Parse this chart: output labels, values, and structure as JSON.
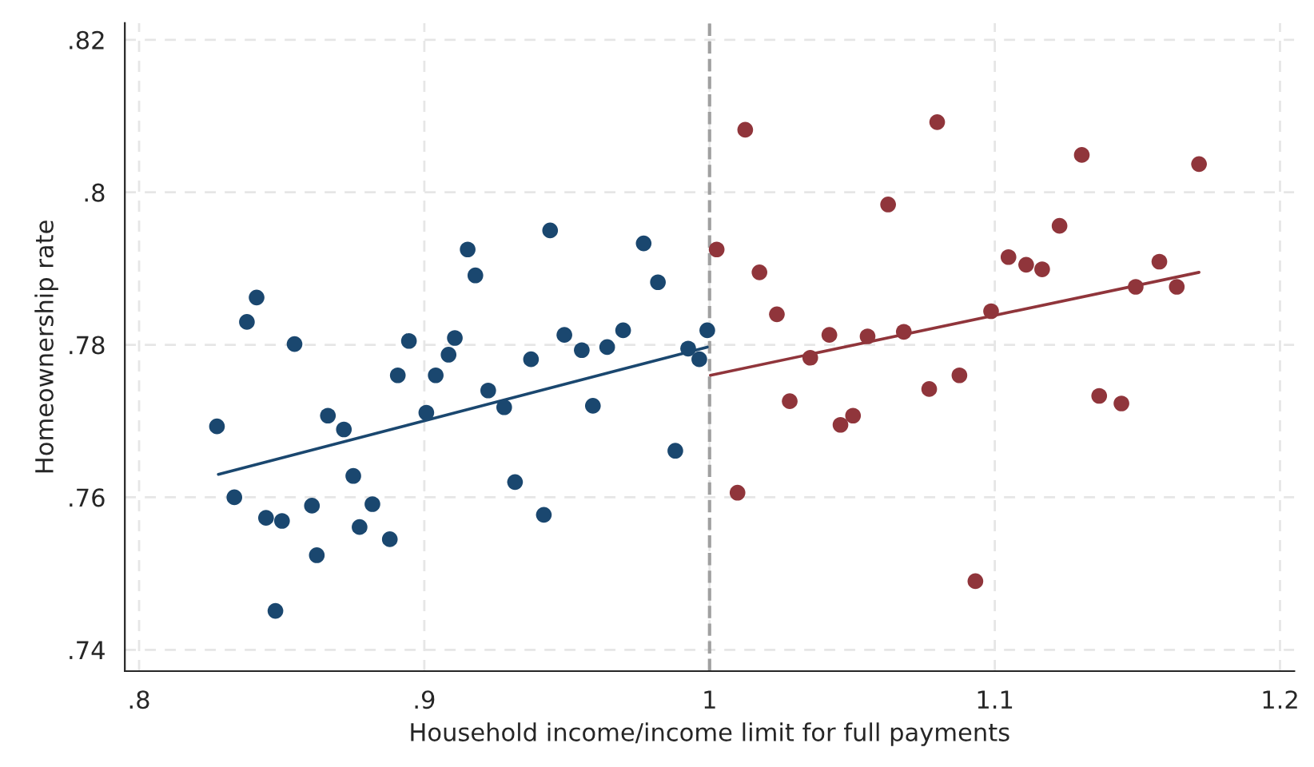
{
  "chart_data": {
    "type": "scatter",
    "xlabel": "Household income/income limit for full payments",
    "ylabel": "Homeownership rate",
    "xlim": [
      0.795,
      1.205
    ],
    "ylim": [
      0.7372,
      0.8222
    ],
    "xticks": [
      {
        "value": 0.8,
        "label": ".8"
      },
      {
        "value": 0.9,
        "label": ".9"
      },
      1,
      {
        "value": 1.1,
        "label": "1.1"
      },
      {
        "value": 1.2,
        "label": "1.2"
      }
    ],
    "yticks": [
      {
        "value": 0.74,
        "label": ".74"
      },
      {
        "value": 0.76,
        "label": ".76"
      },
      {
        "value": 0.78,
        "label": ".78"
      },
      {
        "value": 0.8,
        "label": ".8"
      },
      {
        "value": 0.82,
        "label": ".82"
      }
    ],
    "grid": true,
    "legend": false,
    "ref_lines": [
      {
        "axis": "x",
        "value": 1,
        "color": "#a0a0a0",
        "line_style": "dashed"
      }
    ],
    "series": [
      {
        "marker": "circle",
        "color": "#1a476f",
        "x": [
          0.8273,
          0.8334,
          0.8378,
          0.8412,
          0.8445,
          0.8478,
          0.8501,
          0.8545,
          0.8606,
          0.8623,
          0.8662,
          0.8718,
          0.8751,
          0.8773,
          0.8818,
          0.8879,
          0.8907,
          0.8946,
          0.9007,
          0.904,
          0.9085,
          0.9107,
          0.9152,
          0.9179,
          0.9224,
          0.928,
          0.9318,
          0.9374,
          0.9419,
          0.9441,
          0.9491,
          0.9552,
          0.9591,
          0.9641,
          0.9697,
          0.9769,
          0.9819,
          0.988,
          0.9925,
          0.9964,
          0.9992
        ],
        "values": [
          0.7693,
          0.76,
          0.783,
          0.7862,
          0.7573,
          0.7451,
          0.7569,
          0.7801,
          0.7589,
          0.7524,
          0.7707,
          0.7689,
          0.7628,
          0.7561,
          0.7591,
          0.7545,
          0.776,
          0.7805,
          0.7711,
          0.776,
          0.7787,
          0.7809,
          0.7925,
          0.7891,
          0.774,
          0.7718,
          0.762,
          0.7781,
          0.7577,
          0.795,
          0.7813,
          0.7793,
          0.772,
          0.7797,
          0.7819,
          0.7933,
          0.7882,
          0.7661,
          0.7795,
          0.7781,
          0.7819
        ]
      },
      {
        "marker": "circle",
        "color": "#90353b",
        "x": [
          1.0025,
          1.0098,
          1.0125,
          1.0175,
          1.0236,
          1.0281,
          1.0353,
          1.042,
          1.0459,
          1.0503,
          1.0554,
          1.0626,
          1.0681,
          1.077,
          1.0798,
          1.0876,
          1.0932,
          1.0987,
          1.1048,
          1.111,
          1.1166,
          1.1227,
          1.1305,
          1.1366,
          1.1444,
          1.1494,
          1.1577,
          1.1638,
          1.1716
        ],
        "values": [
          0.7925,
          0.7606,
          0.8082,
          0.7895,
          0.784,
          0.7726,
          0.7783,
          0.7813,
          0.7695,
          0.7707,
          0.7811,
          0.7984,
          0.7817,
          0.7742,
          0.8092,
          0.776,
          0.749,
          0.7844,
          0.7915,
          0.7905,
          0.7899,
          0.7956,
          0.8049,
          0.7733,
          0.7723,
          0.7876,
          0.7909,
          0.7876,
          0.8037
        ]
      },
      {
        "type": "line",
        "color": "#1a476f",
        "x": [
          0.8278,
          0.9992
        ],
        "values": [
          0.763,
          0.7797
        ]
      },
      {
        "type": "line",
        "color": "#90353b",
        "x": [
          1.0003,
          1.1716
        ],
        "values": [
          0.776,
          0.7895
        ]
      }
    ]
  }
}
